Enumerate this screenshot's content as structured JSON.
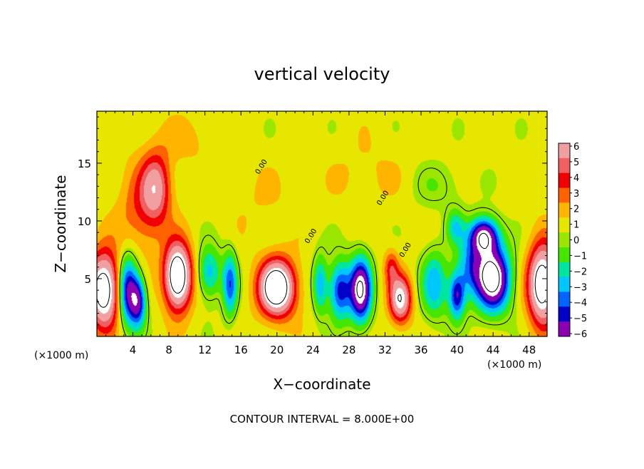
{
  "chart_data": {
    "type": "heatmap",
    "title": "vertical velocity",
    "xlabel": "X−coordinate",
    "ylabel": "Z−coordinate",
    "x_unit": "(×1000 m)",
    "y_unit": "(×1000 m)",
    "footer": "CONTOUR INTERVAL = 8.000E+00",
    "xlim": [
      0,
      50
    ],
    "ylim": [
      0,
      19.5
    ],
    "x_ticks": [
      4,
      8,
      12,
      16,
      20,
      24,
      28,
      32,
      36,
      40,
      44,
      48
    ],
    "y_ticks": [
      5,
      10,
      15
    ],
    "contour_label": "0.00",
    "colorbar": {
      "min": -6,
      "max": 6,
      "tick_labels": [
        "6",
        "5",
        "4",
        "3",
        "2",
        "1",
        "0",
        "−1",
        "−2",
        "−3",
        "−4",
        "−5",
        "−6"
      ],
      "colors": [
        "#f0a0a0",
        "#f06060",
        "#f00000",
        "#ff6000",
        "#ffb400",
        "#e6e600",
        "#9be600",
        "#46e600",
        "#00e6a0",
        "#00c8ff",
        "#0064ff",
        "#0000c8",
        "#8c00b4"
      ]
    },
    "features": [
      {
        "x": 0.8,
        "z": 4.0,
        "sx": 1.8,
        "sz": 3.2,
        "w": 9
      },
      {
        "x": 3.4,
        "z": 4.0,
        "sx": 1.1,
        "sz": 3.0,
        "w": -7
      },
      {
        "x": 4.6,
        "z": 3.0,
        "sx": 0.9,
        "sz": 2.2,
        "w": -6
      },
      {
        "x": 6.6,
        "z": 13.0,
        "sx": 1.6,
        "sz": 3.0,
        "w": 4.5
      },
      {
        "x": 5.0,
        "z": 11.0,
        "sx": 2.6,
        "sz": 4.0,
        "w": 2.5
      },
      {
        "x": 9.0,
        "z": 5.2,
        "sx": 1.5,
        "sz": 2.8,
        "w": 10
      },
      {
        "x": 12.5,
        "z": 5.5,
        "sx": 1.3,
        "sz": 2.2,
        "w": -4
      },
      {
        "x": 14.8,
        "z": 4.5,
        "sx": 0.8,
        "sz": 2.8,
        "w": -5
      },
      {
        "x": 20.0,
        "z": 4.2,
        "sx": 2.0,
        "sz": 2.4,
        "w": 10
      },
      {
        "x": 24.8,
        "z": 4.5,
        "sx": 0.8,
        "sz": 2.5,
        "w": -4
      },
      {
        "x": 27.0,
        "z": 4.0,
        "sx": 1.2,
        "sz": 2.5,
        "w": -6
      },
      {
        "x": 29.3,
        "z": 4.0,
        "sx": 1.2,
        "sz": 2.8,
        "w": -9
      },
      {
        "x": 33.7,
        "z": 3.2,
        "sx": 1.2,
        "sz": 2.0,
        "w": 7
      },
      {
        "x": 32.7,
        "z": 6.0,
        "sx": 0.8,
        "sz": 1.5,
        "w": 3
      },
      {
        "x": 37.5,
        "z": 4.5,
        "sx": 1.5,
        "sz": 3.0,
        "w": -4
      },
      {
        "x": 40.0,
        "z": 3.5,
        "sx": 0.9,
        "sz": 2.0,
        "w": -6
      },
      {
        "x": 39.8,
        "z": 9.5,
        "sx": 1.0,
        "sz": 1.5,
        "w": -3
      },
      {
        "x": 43.0,
        "z": 8.7,
        "sx": 1.6,
        "sz": 1.6,
        "w": -8
      },
      {
        "x": 44.0,
        "z": 5.0,
        "sx": 1.9,
        "sz": 2.8,
        "w": -10
      },
      {
        "x": 41.5,
        "z": 6.0,
        "sx": 1.5,
        "sz": 2.5,
        "w": -4
      },
      {
        "x": 49.5,
        "z": 4.5,
        "sx": 1.6,
        "sz": 3.5,
        "w": 9
      },
      {
        "x": 38.0,
        "z": 13.0,
        "sx": 3.0,
        "sz": 2.0,
        "w": -1.2
      },
      {
        "x": 30.0,
        "z": 14.0,
        "sx": 4.0,
        "sz": 3.0,
        "w": 0.8
      },
      {
        "x": 18.0,
        "z": 12.0,
        "sx": 4.0,
        "sz": 3.0,
        "w": 0.6
      },
      {
        "x": 10.0,
        "z": 17.0,
        "sx": 3.0,
        "sz": 2.0,
        "w": 1.0
      }
    ]
  }
}
